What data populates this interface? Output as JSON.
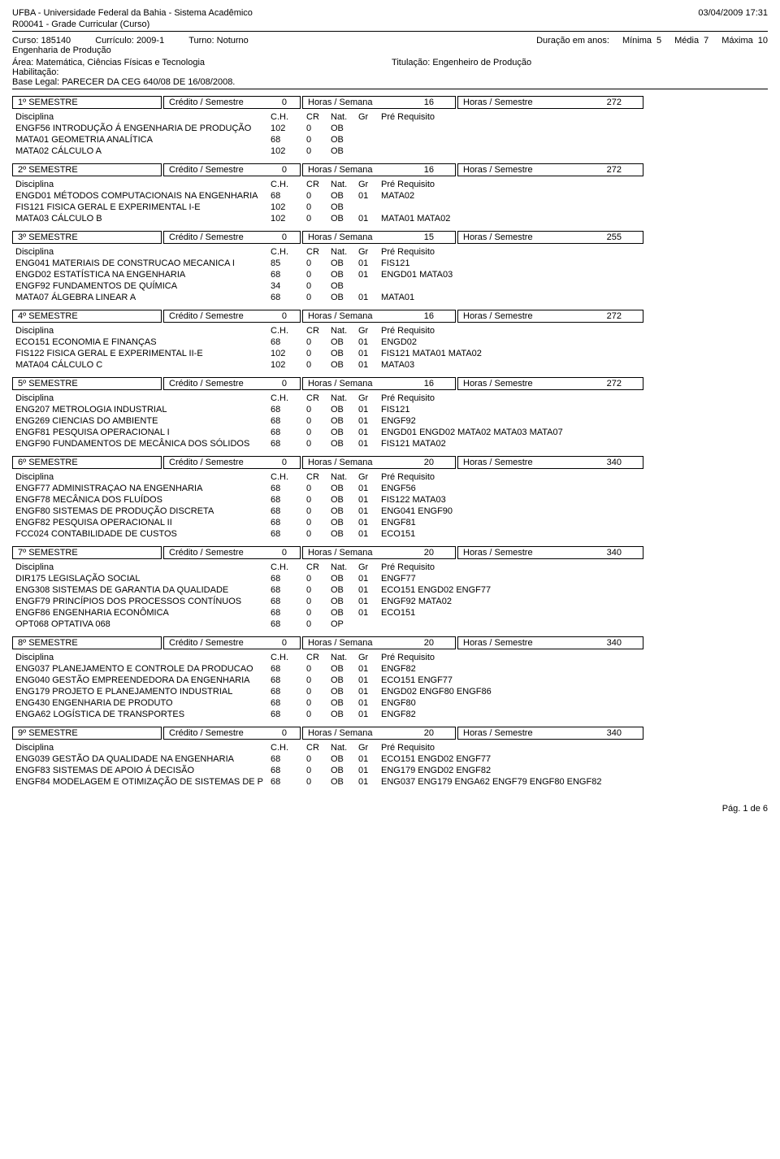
{
  "header": {
    "institution": "UFBA  - Universidade Federal da Bahia - Sistema Acadêmico",
    "datetime": "03/04/2009 17:31",
    "report": "R00041 - Grade Curricular (Curso)"
  },
  "course": {
    "code_label": "Curso:",
    "code": "185140",
    "curriculum_label": "Currículo:",
    "curriculum": "2009-1",
    "shift_label": "Turno:",
    "shift": "Noturno",
    "duration_label": "Duração em anos:",
    "min_label": "Mínima",
    "min": "5",
    "med_label": "Média",
    "med": "7",
    "max_label": "Máxima",
    "max": "10",
    "name": "Engenharia de Produção",
    "area_label": "Área:",
    "area": "Matemática, Ciências Físicas e Tecnologia",
    "title_label": "Titulação:",
    "title": "Engenheiro de Produção",
    "hab_label": "Habilitação:",
    "hab": "",
    "base_label": "Base Legal:",
    "base": "PARECER DA CEG 640/08 DE 16/08/2008."
  },
  "labels": {
    "credito": "Crédito / Semestre",
    "semana": "Horas / Semana",
    "semestre": "Horas / Semestre",
    "disciplina": "Disciplina",
    "ch": "C.H.",
    "cr": "CR",
    "nat": "Nat.",
    "gr": "Gr",
    "prereq": "Pré Requisito"
  },
  "semesters": [
    {
      "title": "1º SEMESTRE",
      "credito": "0",
      "semana": "16",
      "semestre": "272",
      "rows": [
        {
          "disc": "ENGF56 INTRODUÇÃO Á ENGENHARIA DE PRODUÇÃO",
          "ch": "102",
          "cr": "0",
          "nat": "OB",
          "gr": "",
          "pre": ""
        },
        {
          "disc": "MATA01 GEOMETRIA  ANALÍTICA",
          "ch": "68",
          "cr": "0",
          "nat": "OB",
          "gr": "",
          "pre": ""
        },
        {
          "disc": "MATA02 CÁLCULO A",
          "ch": "102",
          "cr": "0",
          "nat": "OB",
          "gr": "",
          "pre": ""
        }
      ]
    },
    {
      "title": "2º SEMESTRE",
      "credito": "0",
      "semana": "16",
      "semestre": "272",
      "rows": [
        {
          "disc": "ENGD01 MÉTODOS COMPUTACIONAIS NA ENGENHARIA",
          "ch": "68",
          "cr": "0",
          "nat": "OB",
          "gr": "01",
          "pre": "MATA02"
        },
        {
          "disc": "FIS121  FISICA  GERAL E EXPERIMENTAL  I-E",
          "ch": "102",
          "cr": "0",
          "nat": "OB",
          "gr": "",
          "pre": ""
        },
        {
          "disc": "MATA03 CÁLCULO B",
          "ch": "102",
          "cr": "0",
          "nat": "OB",
          "gr": "01",
          "pre": "MATA01 MATA02"
        }
      ]
    },
    {
      "title": "3º SEMESTRE",
      "credito": "0",
      "semana": "15",
      "semestre": "255",
      "rows": [
        {
          "disc": "ENG041 MATERIAIS DE CONSTRUCAO MECANICA  I",
          "ch": "85",
          "cr": "0",
          "nat": "OB",
          "gr": "01",
          "pre": "FIS121"
        },
        {
          "disc": "ENGD02 ESTATÍSTICA NA ENGENHARIA",
          "ch": "68",
          "cr": "0",
          "nat": "OB",
          "gr": "01",
          "pre": "ENGD01 MATA03"
        },
        {
          "disc": "ENGF92 FUNDAMENTOS DE QUÍMICA",
          "ch": "34",
          "cr": "0",
          "nat": "OB",
          "gr": "",
          "pre": ""
        },
        {
          "disc": "MATA07 ÁLGEBRA LINEAR A",
          "ch": "68",
          "cr": "0",
          "nat": "OB",
          "gr": "01",
          "pre": "MATA01"
        }
      ]
    },
    {
      "title": "4º SEMESTRE",
      "credito": "0",
      "semana": "16",
      "semestre": "272",
      "rows": [
        {
          "disc": "ECO151 ECONOMIA E FINANÇAS",
          "ch": "68",
          "cr": "0",
          "nat": "OB",
          "gr": "01",
          "pre": "ENGD02"
        },
        {
          "disc": "FIS122  FISICA  GERAL E EXPERIMENTAL  II-E",
          "ch": "102",
          "cr": "0",
          "nat": "OB",
          "gr": "01",
          "pre": "FIS121 MATA01 MATA02"
        },
        {
          "disc": "MATA04 CÁLCULO C",
          "ch": "102",
          "cr": "0",
          "nat": "OB",
          "gr": "01",
          "pre": "MATA03"
        }
      ]
    },
    {
      "title": "5º SEMESTRE",
      "credito": "0",
      "semana": "16",
      "semestre": "272",
      "rows": [
        {
          "disc": "ENG207 METROLOGIA INDUSTRIAL",
          "ch": "68",
          "cr": "0",
          "nat": "OB",
          "gr": "01",
          "pre": "FIS121"
        },
        {
          "disc": "ENG269 CIENCIAS DO AMBIENTE",
          "ch": "68",
          "cr": "0",
          "nat": "OB",
          "gr": "01",
          "pre": "ENGF92"
        },
        {
          "disc": "ENGF81 PESQUISA OPERACIONAL I",
          "ch": "68",
          "cr": "0",
          "nat": "OB",
          "gr": "01",
          "pre": "ENGD01 ENGD02 MATA02 MATA03 MATA07"
        },
        {
          "disc": "ENGF90 FUNDAMENTOS DE MECÂNICA DOS SÓLIDOS",
          "ch": "68",
          "cr": "0",
          "nat": "OB",
          "gr": "01",
          "pre": "FIS121 MATA02"
        }
      ]
    },
    {
      "title": "6º SEMESTRE",
      "credito": "0",
      "semana": "20",
      "semestre": "340",
      "rows": [
        {
          "disc": "ENGF77 ADMINISTRAÇAO NA ENGENHARIA",
          "ch": "68",
          "cr": "0",
          "nat": "OB",
          "gr": "01",
          "pre": "ENGF56"
        },
        {
          "disc": "ENGF78 MECÂNICA DOS FLUÍDOS",
          "ch": "68",
          "cr": "0",
          "nat": "OB",
          "gr": "01",
          "pre": "FIS122 MATA03"
        },
        {
          "disc": "ENGF80 SISTEMAS DE PRODUÇÃO DISCRETA",
          "ch": "68",
          "cr": "0",
          "nat": "OB",
          "gr": "01",
          "pre": "ENG041 ENGF90"
        },
        {
          "disc": "ENGF82 PESQUISA OPERACIONAL II",
          "ch": "68",
          "cr": "0",
          "nat": "OB",
          "gr": "01",
          "pre": "ENGF81"
        },
        {
          "disc": "FCC024  CONTABILIDADE DE CUSTOS",
          "ch": "68",
          "cr": "0",
          "nat": "OB",
          "gr": "01",
          "pre": "ECO151"
        }
      ]
    },
    {
      "title": "7º SEMESTRE",
      "credito": "0",
      "semana": "20",
      "semestre": "340",
      "rows": [
        {
          "disc": "DIR175  LEGISLAÇÃO SOCIAL",
          "ch": "68",
          "cr": "0",
          "nat": "OB",
          "gr": "01",
          "pre": "ENGF77"
        },
        {
          "disc": "ENG308 SISTEMAS  DE  GARANTIA  DA  QUALIDADE",
          "ch": "68",
          "cr": "0",
          "nat": "OB",
          "gr": "01",
          "pre": "ECO151 ENGD02 ENGF77"
        },
        {
          "disc": "ENGF79 PRINCÍPIOS DOS PROCESSOS CONTÍNUOS",
          "ch": "68",
          "cr": "0",
          "nat": "OB",
          "gr": "01",
          "pre": "ENGF92 MATA02"
        },
        {
          "disc": "ENGF86 ENGENHARIA ECONÔMICA",
          "ch": "68",
          "cr": "0",
          "nat": "OB",
          "gr": "01",
          "pre": "ECO151"
        },
        {
          "disc": "OPT068 OPTATIVA 068",
          "ch": "68",
          "cr": "0",
          "nat": "OP",
          "gr": "",
          "pre": ""
        }
      ]
    },
    {
      "title": "8º SEMESTRE",
      "credito": "0",
      "semana": "20",
      "semestre": "340",
      "rows": [
        {
          "disc": "ENG037 PLANEJAMENTO E CONTROLE DA PRODUCAO",
          "ch": "68",
          "cr": "0",
          "nat": "OB",
          "gr": "01",
          "pre": "ENGF82"
        },
        {
          "disc": "ENG040 GESTÃO EMPREENDEDORA DA ENGENHARIA",
          "ch": "68",
          "cr": "0",
          "nat": "OB",
          "gr": "01",
          "pre": "ECO151 ENGF77"
        },
        {
          "disc": "ENG179 PROJETO E  PLANEJAMENTO INDUSTRIAL",
          "ch": "68",
          "cr": "0",
          "nat": "OB",
          "gr": "01",
          "pre": "ENGD02 ENGF80 ENGF86"
        },
        {
          "disc": "ENG430 ENGENHARIA DE PRODUTO",
          "ch": "68",
          "cr": "0",
          "nat": "OB",
          "gr": "01",
          "pre": "ENGF80"
        },
        {
          "disc": "ENGA62 LOGÍSTICA DE TRANSPORTES",
          "ch": "68",
          "cr": "0",
          "nat": "OB",
          "gr": "01",
          "pre": "ENGF82"
        }
      ]
    },
    {
      "title": "9º SEMESTRE",
      "credito": "0",
      "semana": "20",
      "semestre": "340",
      "rows": [
        {
          "disc": "ENG039 GESTÃO DA QUALIDADE NA ENGENHARIA",
          "ch": "68",
          "cr": "0",
          "nat": "OB",
          "gr": "01",
          "pre": "ECO151 ENGD02 ENGF77"
        },
        {
          "disc": "ENGF83 SISTEMAS DE APOIO Á DECISÃO",
          "ch": "68",
          "cr": "0",
          "nat": "OB",
          "gr": "01",
          "pre": "ENG179 ENGD02 ENGF82"
        },
        {
          "disc": "ENGF84 MODELAGEM E OTIMIZAÇÃO DE SISTEMAS DE P",
          "ch": "68",
          "cr": "0",
          "nat": "OB",
          "gr": "01",
          "pre": "ENG037 ENG179 ENGA62 ENGF79 ENGF80 ENGF82"
        }
      ]
    }
  ],
  "footer": {
    "page": "Pág. 1 de 6"
  }
}
